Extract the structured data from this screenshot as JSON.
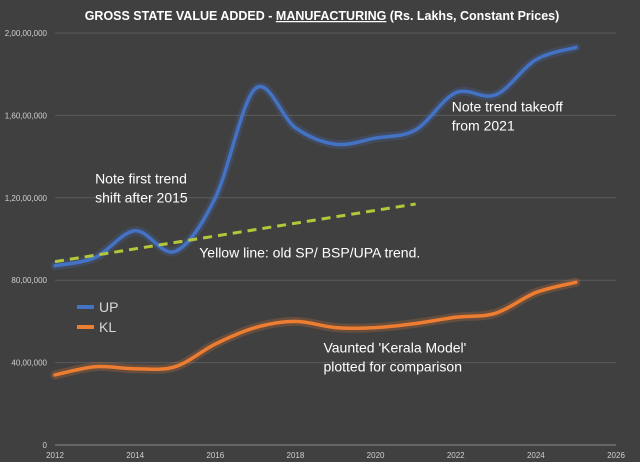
{
  "chart_data": {
    "type": "line",
    "title": {
      "prefix": "GROSS STATE VALUE ADDED - ",
      "emphasis": "MANUFACTURING",
      "suffix": " (Rs. Lakhs, Constant Prices)"
    },
    "xlim": [
      2012,
      2026
    ],
    "ylim": [
      0,
      20000000
    ],
    "x_ticks": [
      "2012",
      "2014",
      "2016",
      "2018",
      "2020",
      "2022",
      "2024",
      "2026"
    ],
    "y_ticks": [
      "0",
      "40,00,000",
      "80,00,000",
      "1,20,00,000",
      "1,60,00,000",
      "2,00,00,000"
    ],
    "grid": "horizontal",
    "legend_position": "left",
    "series": [
      {
        "name": "UP",
        "color": "#4472C4",
        "x": [
          2012,
          2013,
          2014,
          2015,
          2016,
          2017,
          2018,
          2019,
          2020,
          2021,
          2022,
          2023,
          2024,
          2025
        ],
        "values": [
          8700000,
          9100000,
          10400000,
          9400000,
          12000000,
          17300000,
          15400000,
          14600000,
          14900000,
          15300000,
          17100000,
          17000000,
          18700000,
          19300000
        ]
      },
      {
        "name": "KL",
        "color": "#ED7D31",
        "x": [
          2012,
          2013,
          2014,
          2015,
          2016,
          2017,
          2018,
          2019,
          2020,
          2021,
          2022,
          2023,
          2024,
          2025
        ],
        "values": [
          3400000,
          3800000,
          3700000,
          3800000,
          4900000,
          5700000,
          6000000,
          5700000,
          5700000,
          5900000,
          6200000,
          6400000,
          7400000,
          7900000
        ]
      }
    ],
    "trend_line": {
      "color": "#B4C639",
      "x": [
        2012,
        2021
      ],
      "values": [
        8900000,
        11700000
      ]
    },
    "annotations": [
      {
        "lines": [
          "Note first trend",
          "shift after 2015"
        ],
        "x": 2013,
        "y": 12700000
      },
      {
        "lines": [
          "Yellow line: old SP/ BSP/UPA trend."
        ],
        "x": 2015.6,
        "y": 9100000
      },
      {
        "lines": [
          "Note trend takeoff",
          "from 2021"
        ],
        "x": 2021.9,
        "y": 16200000
      },
      {
        "lines": [
          "Vaunted 'Kerala Model'",
          "plotted for comparison"
        ],
        "x": 2018.7,
        "y": 4500000
      }
    ]
  }
}
